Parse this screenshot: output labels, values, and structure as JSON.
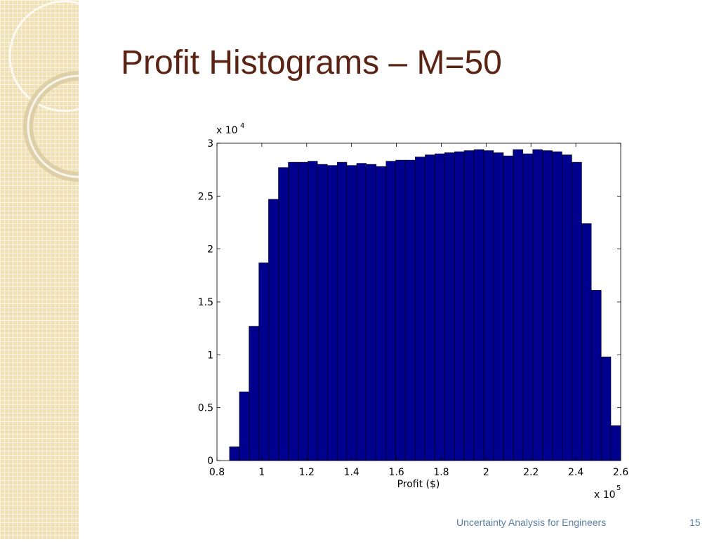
{
  "chart_data": {
    "type": "histogram",
    "title": "Profit Histograms – M=50",
    "xlabel": "Profit ($)",
    "x_multiplier": {
      "base": "x 10",
      "exponent": "5"
    },
    "y_multiplier": {
      "base": "x 10",
      "exponent": "4"
    },
    "bins": [
      0.856,
      0.9,
      0.943,
      0.987,
      1.03,
      1.074,
      1.118,
      1.161,
      1.205,
      1.248,
      1.292,
      1.336,
      1.379,
      1.423,
      1.466,
      1.51,
      1.554,
      1.597,
      1.641,
      1.684,
      1.728,
      1.772,
      1.815,
      1.859,
      1.902,
      1.946,
      1.99,
      2.033,
      2.077,
      2.12,
      2.164,
      2.208,
      2.251,
      2.295,
      2.338,
      2.382,
      2.426,
      2.469,
      2.513,
      2.556,
      2.6
    ],
    "values": [
      0.13,
      0.65,
      1.27,
      1.87,
      2.47,
      2.77,
      2.82,
      2.82,
      2.83,
      2.8,
      2.79,
      2.82,
      2.79,
      2.81,
      2.8,
      2.78,
      2.83,
      2.84,
      2.84,
      2.87,
      2.89,
      2.9,
      2.91,
      2.92,
      2.93,
      2.94,
      2.93,
      2.91,
      2.88,
      2.94,
      2.9,
      2.94,
      2.93,
      2.92,
      2.89,
      2.82,
      2.24,
      1.61,
      0.98,
      0.33
    ],
    "color": "#00008f",
    "xlim": [
      0.8,
      2.6
    ],
    "xticks": [
      0.8,
      1,
      1.2,
      1.4,
      1.6,
      1.8,
      2,
      2.2,
      2.4,
      2.6
    ],
    "ylim": [
      0,
      3
    ],
    "yticks": [
      0,
      0.5,
      1,
      1.5,
      2,
      2.5,
      3
    ]
  },
  "footer": {
    "text": "Uncertainty Analysis for Engineers",
    "page": "15"
  }
}
